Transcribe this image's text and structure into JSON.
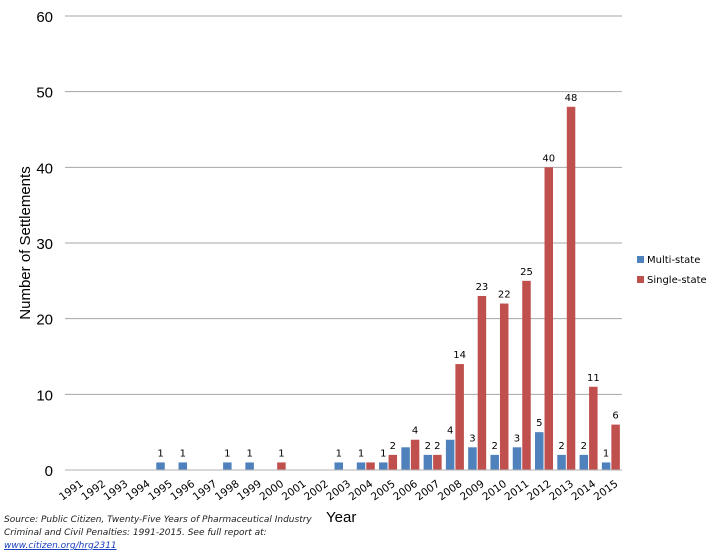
{
  "chart_data": {
    "type": "bar",
    "title": "",
    "xlabel": "Year",
    "ylabel": "Number of Settlements",
    "ylim": [
      0,
      60
    ],
    "yticks": [
      0,
      10,
      20,
      30,
      40,
      50,
      60
    ],
    "grid": true,
    "legend_position": "right",
    "categories": [
      "1991",
      "1992",
      "1993",
      "1994",
      "1995",
      "1996",
      "1997",
      "1998",
      "1999",
      "2000",
      "2001",
      "2002",
      "2003",
      "2004",
      "2005",
      "2006",
      "2007",
      "2008",
      "2009",
      "2010",
      "2011",
      "2012",
      "2013",
      "2014",
      "2015"
    ],
    "series": [
      {
        "name": "Multi-state",
        "color": "#4f81bd",
        "values": [
          0,
          0,
          0,
          0,
          1,
          1,
          0,
          1,
          1,
          0,
          0,
          0,
          1,
          1,
          1,
          3,
          2,
          4,
          3,
          2,
          3,
          5,
          2,
          2,
          1
        ],
        "labels": [
          "",
          "",
          "",
          "",
          "1",
          "1",
          "",
          "1",
          "1",
          "",
          "",
          "",
          "1",
          "1",
          "1",
          "",
          "2",
          "4",
          "3",
          "2",
          "3",
          "5",
          "2",
          "2",
          "1"
        ]
      },
      {
        "name": "Single-state",
        "color": "#c0504d",
        "values": [
          0,
          0,
          0,
          0,
          0,
          0,
          0,
          0,
          0,
          1,
          0,
          0,
          0,
          1,
          2,
          4,
          2,
          14,
          23,
          22,
          25,
          40,
          48,
          11,
          6
        ],
        "labels": [
          "",
          "",
          "",
          "",
          "",
          "",
          "",
          "",
          "",
          "1",
          "",
          "",
          "",
          "",
          "2",
          "4",
          "2",
          "14",
          "23",
          "22",
          "25",
          "40",
          "48",
          "11",
          "6"
        ]
      }
    ]
  },
  "source_note": {
    "text": "Source: Public Citizen, Twenty-Five Years of Pharmaceutical Industry Criminal and Civil Penalties: 1991-2015. See full report at: ",
    "link": "www.citizen.org/hrg2311"
  }
}
